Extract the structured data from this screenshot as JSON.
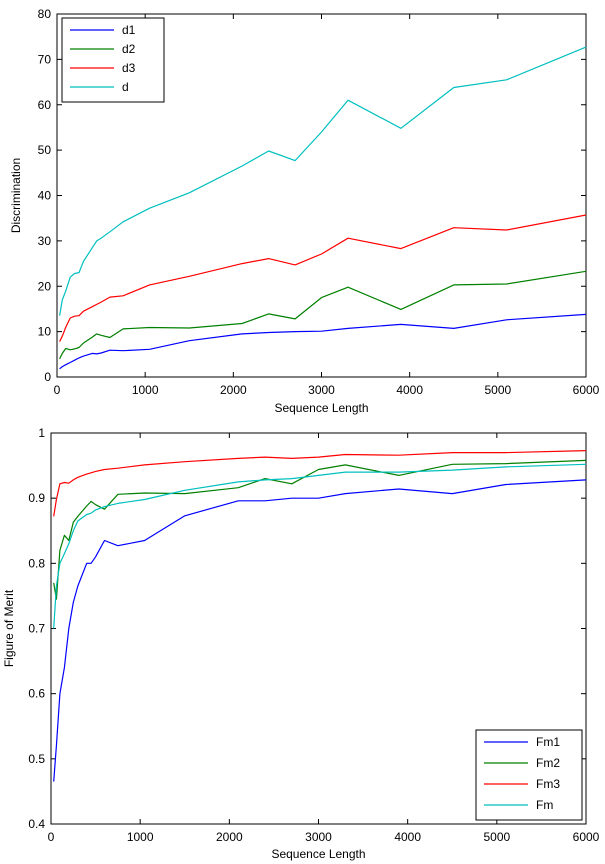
{
  "chart_data": [
    {
      "type": "line",
      "xlabel": "Sequence Length",
      "ylabel": "Discrimination",
      "xlim": [
        0,
        6000
      ],
      "ylim": [
        0,
        80
      ],
      "xticks": [
        0,
        1000,
        2000,
        3000,
        4000,
        5000,
        6000
      ],
      "yticks": [
        0,
        10,
        20,
        30,
        40,
        50,
        60,
        70,
        80
      ],
      "grid": false,
      "legend_position": "top-left",
      "series": [
        {
          "name": "d1",
          "color": "#0000ff",
          "x": [
            30,
            60,
            100,
            150,
            200,
            250,
            300,
            400,
            450,
            500,
            600,
            750,
            1050,
            1500,
            2100,
            2400,
            2700,
            3000,
            3300,
            3900,
            4500,
            5100,
            6000
          ],
          "values": [
            1.8,
            2.3,
            2.7,
            3.2,
            3.7,
            4.2,
            4.6,
            5.2,
            5.1,
            5.3,
            5.9,
            5.8,
            6.1,
            8.0,
            9.5,
            9.8,
            10.0,
            10.1,
            10.7,
            11.6,
            10.7,
            12.6,
            13.8
          ]
        },
        {
          "name": "d2",
          "color": "#008000",
          "x": [
            30,
            60,
            100,
            150,
            200,
            250,
            300,
            400,
            450,
            500,
            600,
            750,
            1050,
            1500,
            2100,
            2400,
            2700,
            3000,
            3300,
            3900,
            4500,
            5100,
            6000
          ],
          "values": [
            4.0,
            5.2,
            6.3,
            6.0,
            6.2,
            6.5,
            7.5,
            8.8,
            9.5,
            9.2,
            8.7,
            10.6,
            10.9,
            10.8,
            11.8,
            13.9,
            12.8,
            17.5,
            19.8,
            14.9,
            20.3,
            20.5,
            23.3
          ]
        },
        {
          "name": "d3",
          "color": "#ff0000",
          "x": [
            30,
            60,
            100,
            150,
            200,
            250,
            300,
            400,
            450,
            500,
            600,
            750,
            1050,
            1500,
            2100,
            2400,
            2700,
            3000,
            3300,
            3900,
            4500,
            5100,
            6000
          ],
          "values": [
            7.8,
            9.0,
            11.0,
            13.0,
            13.4,
            13.5,
            14.5,
            15.5,
            16.0,
            16.5,
            17.6,
            17.9,
            20.3,
            22.2,
            25.0,
            26.1,
            24.7,
            27.1,
            30.6,
            28.3,
            32.9,
            32.4,
            35.7
          ]
        },
        {
          "name": "d",
          "color": "#00bfbf",
          "x": [
            30,
            60,
            100,
            150,
            200,
            250,
            300,
            400,
            450,
            500,
            600,
            750,
            1050,
            1500,
            2100,
            2400,
            2700,
            3000,
            3300,
            3900,
            4500,
            5100,
            6000
          ],
          "values": [
            13.5,
            17.0,
            19.0,
            22.0,
            22.8,
            23.0,
            25.5,
            28.5,
            30.0,
            30.6,
            32.0,
            34.2,
            37.2,
            40.6,
            46.5,
            49.8,
            47.7,
            54.0,
            61.0,
            54.8,
            63.8,
            65.5,
            72.7
          ]
        }
      ]
    },
    {
      "type": "line",
      "xlabel": "Sequence Length",
      "ylabel": "Figure of Merit",
      "xlim": [
        0,
        6000
      ],
      "ylim": [
        0.4,
        1.0
      ],
      "xticks": [
        0,
        1000,
        2000,
        3000,
        4000,
        5000,
        6000
      ],
      "yticks": [
        0.4,
        0.5,
        0.6,
        0.7,
        0.8,
        0.9,
        1.0
      ],
      "yticklabels": [
        "0.4",
        "0.5",
        "0.6",
        "0.7",
        "0.8",
        "0.9",
        "1"
      ],
      "grid": false,
      "legend_position": "bottom-right",
      "series": [
        {
          "name": "Fm1",
          "color": "#0000ff",
          "x": [
            30,
            60,
            100,
            150,
            200,
            250,
            300,
            400,
            450,
            500,
            600,
            750,
            1050,
            1500,
            2100,
            2400,
            2700,
            3000,
            3300,
            3900,
            4500,
            5100,
            6000
          ],
          "values": [
            0.465,
            0.52,
            0.6,
            0.64,
            0.7,
            0.74,
            0.765,
            0.8,
            0.8,
            0.81,
            0.835,
            0.827,
            0.835,
            0.873,
            0.896,
            0.896,
            0.9,
            0.9,
            0.907,
            0.914,
            0.907,
            0.921,
            0.928
          ]
        },
        {
          "name": "Fm2",
          "color": "#008000",
          "x": [
            30,
            60,
            100,
            150,
            200,
            250,
            300,
            400,
            450,
            500,
            600,
            750,
            1050,
            1500,
            2100,
            2400,
            2700,
            3000,
            3300,
            3900,
            4500,
            5100,
            6000
          ],
          "values": [
            0.77,
            0.745,
            0.82,
            0.843,
            0.835,
            0.863,
            0.872,
            0.888,
            0.895,
            0.89,
            0.883,
            0.906,
            0.908,
            0.907,
            0.916,
            0.93,
            0.922,
            0.944,
            0.951,
            0.935,
            0.952,
            0.953,
            0.958
          ]
        },
        {
          "name": "Fm3",
          "color": "#ff0000",
          "x": [
            30,
            60,
            100,
            150,
            200,
            250,
            300,
            400,
            450,
            500,
            600,
            750,
            1050,
            1500,
            2100,
            2400,
            2700,
            3000,
            3300,
            3900,
            4500,
            5100,
            6000
          ],
          "values": [
            0.872,
            0.898,
            0.922,
            0.924,
            0.923,
            0.928,
            0.932,
            0.937,
            0.939,
            0.941,
            0.944,
            0.946,
            0.951,
            0.956,
            0.961,
            0.963,
            0.961,
            0.963,
            0.967,
            0.966,
            0.97,
            0.97,
            0.973
          ]
        },
        {
          "name": "Fm",
          "color": "#00bfbf",
          "x": [
            30,
            60,
            100,
            150,
            200,
            250,
            300,
            400,
            450,
            500,
            600,
            750,
            1050,
            1500,
            2100,
            2400,
            2700,
            3000,
            3300,
            3900,
            4500,
            5100,
            6000
          ],
          "values": [
            0.7,
            0.765,
            0.8,
            0.815,
            0.83,
            0.85,
            0.865,
            0.875,
            0.877,
            0.882,
            0.887,
            0.892,
            0.898,
            0.912,
            0.925,
            0.928,
            0.93,
            0.935,
            0.94,
            0.94,
            0.943,
            0.948,
            0.952
          ]
        }
      ]
    }
  ]
}
